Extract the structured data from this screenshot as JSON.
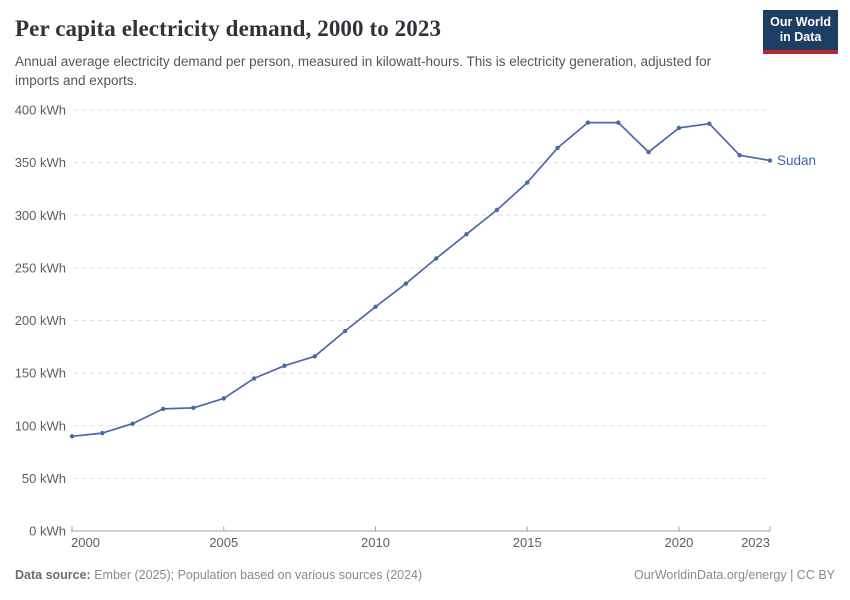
{
  "header": {
    "title": "Per capita electricity demand, 2000 to 2023",
    "subtitle": "Annual average electricity demand per person, measured in kilowatt-hours. This is electricity generation, adjusted for imports and exports.",
    "logo": {
      "line1": "Our World",
      "line2": "in Data"
    }
  },
  "footer": {
    "source_label": "Data source:",
    "source_text": " Ember (2025); Population based on various sources (2024)",
    "right_text": "OurWorldinData.org/energy | CC BY"
  },
  "chart_data": {
    "type": "line",
    "title": "Per capita electricity demand, 2000 to 2023",
    "xlabel": "",
    "ylabel": "kWh",
    "xlim": [
      2000,
      2023
    ],
    "ylim": [
      0,
      400
    ],
    "x_ticks": [
      2000,
      2005,
      2010,
      2015,
      2020,
      2023
    ],
    "y_ticks": [
      0,
      50,
      100,
      150,
      200,
      250,
      300,
      350,
      400
    ],
    "y_tick_suffix": " kWh",
    "grid": "horizontal-dashed",
    "legend_position": "end-of-line",
    "series": [
      {
        "name": "Sudan",
        "color": "#4b69a8",
        "label_color": "#3e67ae",
        "x": [
          2000,
          2001,
          2002,
          2003,
          2004,
          2005,
          2006,
          2007,
          2008,
          2009,
          2010,
          2011,
          2012,
          2013,
          2014,
          2015,
          2016,
          2017,
          2018,
          2019,
          2020,
          2021,
          2022,
          2023
        ],
        "values": [
          90,
          93,
          102,
          116,
          117,
          126,
          145,
          157,
          166,
          190,
          213,
          235,
          259,
          282,
          305,
          331,
          364,
          388,
          388,
          360,
          383,
          387,
          357,
          352
        ]
      }
    ]
  },
  "chart_colors": {
    "grid": "#dedede",
    "axis": "#a1a1a1",
    "tick_label": "#5e5e5e"
  }
}
